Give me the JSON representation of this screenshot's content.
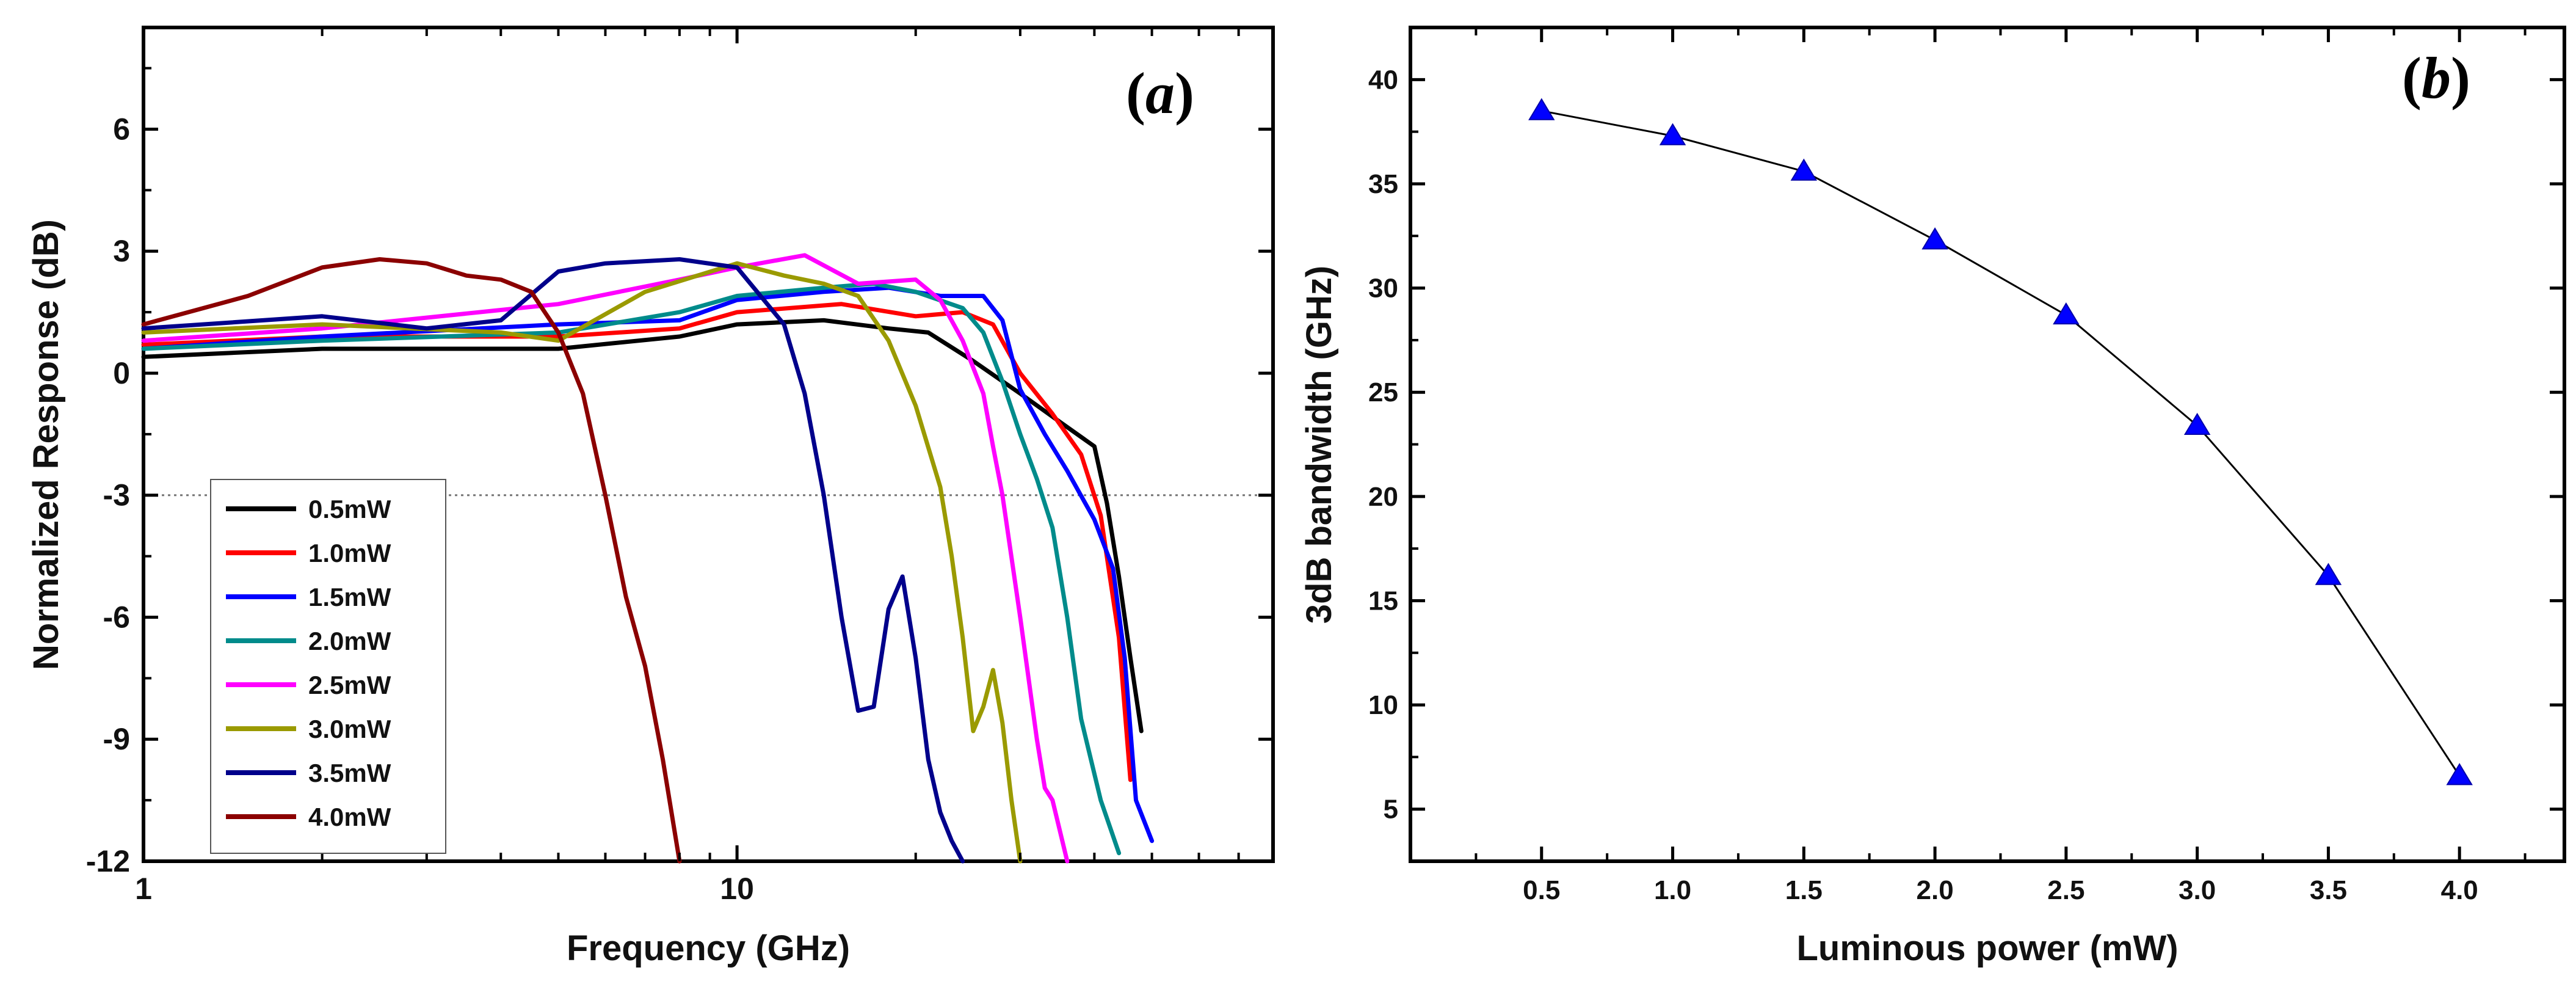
{
  "chart_data": [
    {
      "type": "line",
      "panel_label": "(a)",
      "panel_letter": "a",
      "xlabel": "Frequency (GHz)",
      "ylabel": "Normalized Response (dB)",
      "xscale": "log",
      "xlim": [
        1,
        80
      ],
      "ylim": [
        -12,
        8.5
      ],
      "xticks": [
        1,
        10
      ],
      "xtick_labels": [
        "1",
        "10"
      ],
      "yticks": [
        6,
        3,
        0,
        -3,
        -6,
        -9,
        -12
      ],
      "ytick_labels": [
        "6",
        "3",
        "0",
        "-3",
        "-6",
        "-9",
        "-12"
      ],
      "reference_line_y": -3,
      "legend_position": "bottom-left",
      "series": [
        {
          "name": "0.5mW",
          "color": "#000000",
          "x": [
            1,
            2,
            5,
            8,
            10,
            14,
            18,
            21,
            25,
            30,
            35,
            40,
            42,
            44,
            46,
            48
          ],
          "y": [
            0.4,
            0.6,
            0.6,
            0.9,
            1.2,
            1.3,
            1.1,
            1.0,
            0.3,
            -0.5,
            -1.2,
            -1.8,
            -3.2,
            -5.0,
            -7.0,
            -8.8
          ]
        },
        {
          "name": "1.0mW",
          "color": "#ff0000",
          "x": [
            1,
            2,
            5,
            8,
            10,
            15,
            20,
            24,
            27,
            30,
            34,
            38,
            41,
            44,
            46
          ],
          "y": [
            0.7,
            0.9,
            0.9,
            1.1,
            1.5,
            1.7,
            1.4,
            1.5,
            1.2,
            0.0,
            -1.0,
            -2.0,
            -3.5,
            -6.5,
            -10.0
          ]
        },
        {
          "name": "1.5mW",
          "color": "#0000ff",
          "x": [
            1,
            2,
            5,
            8,
            10,
            14,
            18,
            22,
            26,
            28,
            30,
            33,
            36,
            40,
            43,
            45,
            47,
            50
          ],
          "y": [
            0.6,
            0.9,
            1.2,
            1.3,
            1.8,
            2.0,
            2.1,
            1.9,
            1.9,
            1.3,
            -0.4,
            -1.5,
            -2.4,
            -3.6,
            -4.8,
            -7.0,
            -10.5,
            -11.5
          ]
        },
        {
          "name": "2.0mW",
          "color": "#008b8b",
          "x": [
            1,
            2,
            5,
            8,
            10,
            14,
            17,
            20,
            24,
            26,
            28,
            30,
            32,
            34,
            36,
            38,
            41,
            44
          ],
          "y": [
            0.6,
            0.8,
            1.0,
            1.5,
            1.9,
            2.1,
            2.2,
            2.0,
            1.6,
            1.0,
            -0.2,
            -1.5,
            -2.6,
            -3.8,
            -6.0,
            -8.5,
            -10.5,
            -11.8
          ]
        },
        {
          "name": "2.5mW",
          "color": "#ff00ff",
          "x": [
            1,
            2,
            5,
            8,
            10,
            13,
            16,
            20,
            22,
            24,
            26,
            27,
            28,
            30,
            32,
            33,
            34,
            36
          ],
          "y": [
            0.8,
            1.1,
            1.7,
            2.3,
            2.6,
            2.9,
            2.2,
            2.3,
            1.8,
            0.8,
            -0.5,
            -1.8,
            -3.0,
            -6.0,
            -9.0,
            -10.2,
            -10.5,
            -12.0
          ]
        },
        {
          "name": "3.0mW",
          "color": "#9a9a00",
          "x": [
            1,
            2,
            4,
            5,
            7,
            10,
            12,
            14,
            16,
            18,
            20,
            22,
            23,
            24,
            25,
            26,
            27,
            28,
            29,
            30
          ],
          "y": [
            1.0,
            1.2,
            1.0,
            0.8,
            2.0,
            2.7,
            2.4,
            2.2,
            1.9,
            0.8,
            -0.8,
            -2.8,
            -4.5,
            -6.5,
            -8.8,
            -8.2,
            -7.3,
            -8.6,
            -10.5,
            -12.0
          ]
        },
        {
          "name": "3.5mW",
          "color": "#00008b",
          "x": [
            1,
            2,
            3,
            4,
            5,
            6,
            8,
            10,
            12,
            13,
            14,
            15,
            16,
            17,
            18,
            19,
            20,
            21,
            22,
            23,
            24
          ],
          "y": [
            1.1,
            1.4,
            1.1,
            1.3,
            2.5,
            2.7,
            2.8,
            2.6,
            1.2,
            -0.5,
            -3.0,
            -6.0,
            -8.3,
            -8.2,
            -5.8,
            -5.0,
            -7.0,
            -9.5,
            -10.8,
            -11.5,
            -12.0
          ]
        },
        {
          "name": "4.0mW",
          "color": "#8b0000",
          "x": [
            1,
            1.5,
            2,
            2.5,
            3,
            3.5,
            4,
            4.5,
            5,
            5.5,
            6,
            6.5,
            7,
            7.5,
            8
          ],
          "y": [
            1.2,
            1.9,
            2.6,
            2.8,
            2.7,
            2.4,
            2.3,
            2.0,
            1.0,
            -0.5,
            -3.0,
            -5.5,
            -7.2,
            -9.5,
            -12.0
          ]
        }
      ]
    },
    {
      "type": "scatter",
      "panel_label": "(b)",
      "panel_letter": "b",
      "xlabel": "Luminous power (mW)",
      "ylabel": "3dB bandwidth (GHz)",
      "xlim": [
        0,
        4.4
      ],
      "ylim": [
        2.5,
        42.5
      ],
      "xticks": [
        0.5,
        1.0,
        1.5,
        2.0,
        2.5,
        3.0,
        3.5,
        4.0
      ],
      "xtick_labels": [
        "0.5",
        "1.0",
        "1.5",
        "2.0",
        "2.5",
        "3.0",
        "3.5",
        "4.0"
      ],
      "yticks": [
        5,
        10,
        15,
        20,
        25,
        30,
        35,
        40
      ],
      "ytick_labels": [
        "5",
        "10",
        "15",
        "20",
        "25",
        "30",
        "35",
        "40"
      ],
      "marker": "triangle",
      "marker_color": "#0000ff",
      "line_color": "#000000",
      "x": [
        0.5,
        1.0,
        1.5,
        2.0,
        2.5,
        3.0,
        3.5,
        4.0
      ],
      "y": [
        38.5,
        37.3,
        35.6,
        32.3,
        28.7,
        23.4,
        16.2,
        6.6
      ]
    }
  ]
}
